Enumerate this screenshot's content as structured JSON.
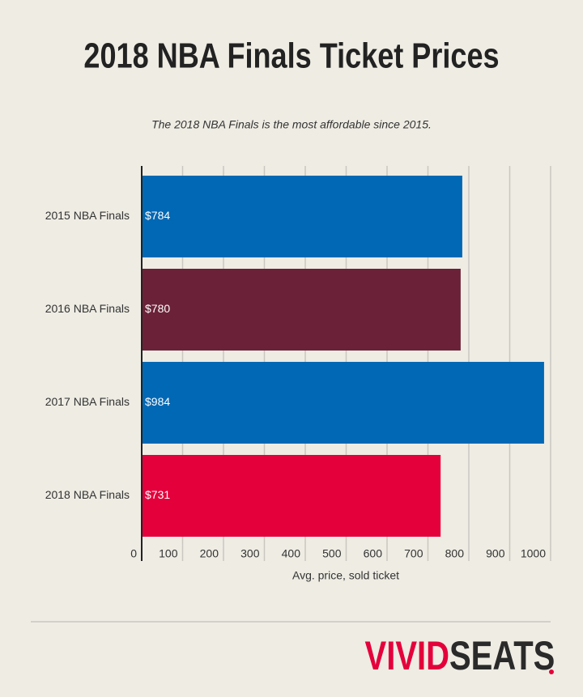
{
  "chart_data": {
    "type": "hbar",
    "title": "2018 NBA Finals Ticket Prices",
    "subtitle": "The 2018 NBA Finals is the most affordable since 2015.",
    "categories": [
      "2015 NBA Finals",
      "2016 NBA Finals",
      "2017 NBA Finals",
      "2018 NBA Finals"
    ],
    "values": [
      784,
      780,
      984,
      731
    ],
    "value_labels": [
      "$784",
      "$780",
      "$984",
      "$731"
    ],
    "colors": [
      "#0068b4",
      "#6b2238",
      "#0068b4",
      "#e4003b"
    ],
    "xlabel": "Avg. price, sold ticket",
    "xlim": [
      0,
      1000
    ],
    "xticks": [
      0,
      100,
      200,
      300,
      400,
      500,
      600,
      700,
      800,
      900,
      1000
    ],
    "grid": true
  },
  "logo": {
    "primary": "VIVID",
    "secondary": "SEATS"
  }
}
